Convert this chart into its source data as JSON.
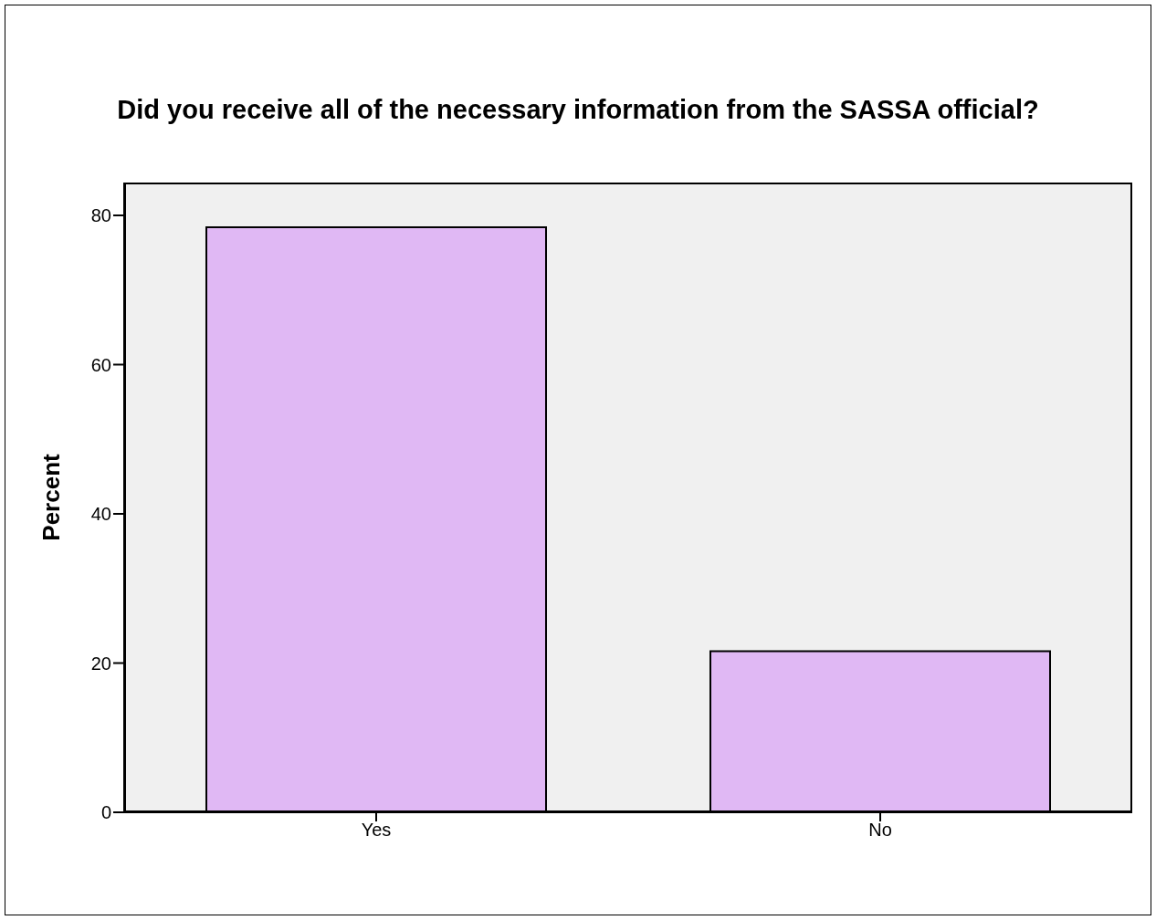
{
  "chart_data": {
    "type": "bar",
    "title": "Did you receive all of the necessary information from the SASSA official?",
    "ylabel": "Percent",
    "categories": [
      "Yes",
      "No"
    ],
    "values": [
      78.4,
      21.6
    ],
    "color": "#e0b8f4",
    "ylim": [
      0,
      84.4
    ],
    "yticks": [
      0,
      20,
      40,
      60,
      80
    ],
    "grid": false
  }
}
